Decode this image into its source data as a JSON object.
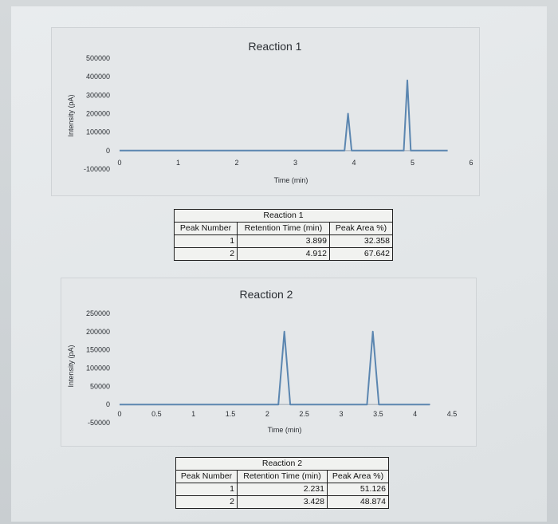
{
  "charts": [
    {
      "type": "line",
      "title": "Reaction 1",
      "xlabel": "Time (min)",
      "ylabel": "Intensity (pA)",
      "xlim": [
        0,
        6
      ],
      "ylim": [
        -100000,
        500000
      ],
      "xticks": [
        "0",
        "1",
        "2",
        "3",
        "4",
        "5",
        "6"
      ],
      "yticks": [
        "-100000",
        "0",
        "100000",
        "200000",
        "300000",
        "400000",
        "500000"
      ],
      "grid": false,
      "series": [
        {
          "color": "#5b86b0",
          "x": [
            0,
            3.84,
            3.899,
            3.96,
            4.85,
            4.912,
            4.97,
            5.6
          ],
          "y": [
            0,
            0,
            200000,
            0,
            0,
            380000,
            0,
            0
          ]
        }
      ]
    },
    {
      "type": "line",
      "title": "Reaction 2",
      "xlabel": "Time (min)",
      "ylabel": "Intensity (pA)",
      "xlim": [
        0,
        4.5
      ],
      "ylim": [
        -50000,
        250000
      ],
      "xticks": [
        "0",
        "0.5",
        "1",
        "1.5",
        "2",
        "2.5",
        "3",
        "3.5",
        "4",
        "4.5"
      ],
      "yticks": [
        "-50000",
        "0",
        "50000",
        "100000",
        "150000",
        "200000",
        "250000"
      ],
      "grid": false,
      "series": [
        {
          "color": "#5b86b0",
          "x": [
            0,
            2.15,
            2.231,
            2.31,
            3.35,
            3.428,
            3.51,
            4.2
          ],
          "y": [
            0,
            0,
            200000,
            0,
            0,
            200000,
            0,
            0
          ]
        }
      ]
    }
  ],
  "tables": [
    {
      "caption": "Reaction 1",
      "headers": [
        "Peak Number",
        "Retention Time (min)",
        "Peak Area %)"
      ],
      "rows": [
        [
          "1",
          "3.899",
          "32.358"
        ],
        [
          "2",
          "4.912",
          "67.642"
        ]
      ]
    },
    {
      "caption": "Reaction 2",
      "headers": [
        "Peak Number",
        "Retention Time (min)",
        "Peak Area %)"
      ],
      "rows": [
        [
          "1",
          "2.231",
          "51.126"
        ],
        [
          "2",
          "3.428",
          "48.874"
        ]
      ]
    }
  ]
}
